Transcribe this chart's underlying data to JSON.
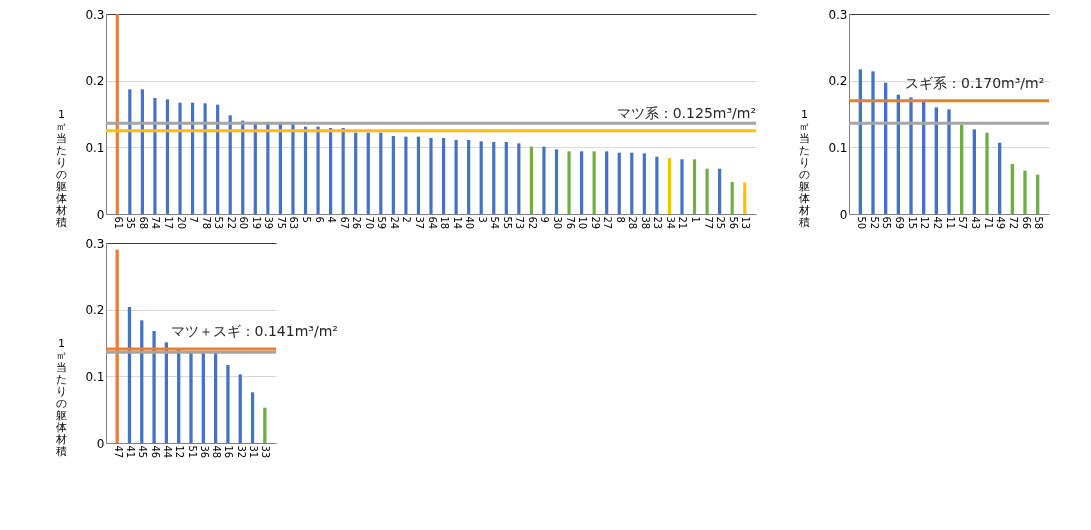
{
  "chart_data": [
    {
      "type": "bar",
      "ylabel": "1㎡当たりの躯体材積",
      "categories": [
        "61",
        "35",
        "68",
        "74",
        "17",
        "20",
        "7",
        "78",
        "53",
        "22",
        "60",
        "19",
        "39",
        "75",
        "63",
        "5",
        "6",
        "4",
        "67",
        "26",
        "70",
        "59",
        "24",
        "2",
        "37",
        "64",
        "18",
        "14",
        "40",
        "3",
        "54",
        "55",
        "73",
        "62",
        "9",
        "30",
        "76",
        "10",
        "29",
        "27",
        "8",
        "28",
        "38",
        "23",
        "34",
        "21",
        "1",
        "77",
        "25",
        "56",
        "13"
      ],
      "values": [
        0.3,
        0.187,
        0.187,
        0.174,
        0.172,
        0.167,
        0.167,
        0.166,
        0.164,
        0.148,
        0.14,
        0.135,
        0.135,
        0.135,
        0.135,
        0.131,
        0.131,
        0.129,
        0.129,
        0.122,
        0.122,
        0.122,
        0.117,
        0.116,
        0.116,
        0.114,
        0.114,
        0.111,
        0.111,
        0.109,
        0.108,
        0.108,
        0.106,
        0.101,
        0.101,
        0.097,
        0.094,
        0.094,
        0.094,
        0.094,
        0.092,
        0.092,
        0.091,
        0.086,
        0.084,
        0.082,
        0.082,
        0.068,
        0.068,
        0.048,
        0.047
      ],
      "colors": [
        "#ed7d31",
        "#4472c4",
        "#4472c4",
        "#4472c4",
        "#4472c4",
        "#4472c4",
        "#4472c4",
        "#4472c4",
        "#4472c4",
        "#4472c4",
        "#4472c4",
        "#4472c4",
        "#4472c4",
        "#4472c4",
        "#4472c4",
        "#4472c4",
        "#4472c4",
        "#4472c4",
        "#4472c4",
        "#4472c4",
        "#4472c4",
        "#4472c4",
        "#4472c4",
        "#4472c4",
        "#4472c4",
        "#4472c4",
        "#4472c4",
        "#4472c4",
        "#4472c4",
        "#4472c4",
        "#4472c4",
        "#4472c4",
        "#4472c4",
        "#70ad47",
        "#4472c4",
        "#4472c4",
        "#70ad47",
        "#4472c4",
        "#70ad47",
        "#4472c4",
        "#4472c4",
        "#4472c4",
        "#4472c4",
        "#4472c4",
        "#ffc000",
        "#4472c4",
        "#70ad47",
        "#70ad47",
        "#4472c4",
        "#70ad47",
        "#ffc000"
      ],
      "ylim": [
        0,
        0.3
      ],
      "yticks": [
        0,
        0.1,
        0.2,
        0.3
      ],
      "grid": "y",
      "ref_lines": [
        {
          "axis": "y",
          "value": 0.136,
          "color": "#a5a5a5"
        },
        {
          "axis": "y",
          "value": 0.125,
          "label": "マツ系：0.125m³/m²",
          "color": "#ffc000"
        }
      ]
    },
    {
      "type": "bar",
      "ylabel": "1㎡当たりの躯体材積",
      "categories": [
        "50",
        "52",
        "65",
        "69",
        "15",
        "12",
        "42",
        "11",
        "57",
        "43",
        "71",
        "49",
        "72",
        "66",
        "58"
      ],
      "values": [
        0.217,
        0.214,
        0.197,
        0.179,
        0.175,
        0.169,
        0.16,
        0.157,
        0.134,
        0.127,
        0.122,
        0.107,
        0.075,
        0.065,
        0.059
      ],
      "colors": [
        "#4472c4",
        "#4472c4",
        "#4472c4",
        "#4472c4",
        "#4472c4",
        "#4472c4",
        "#4472c4",
        "#4472c4",
        "#70ad47",
        "#4472c4",
        "#70ad47",
        "#4472c4",
        "#70ad47",
        "#70ad47",
        "#70ad47"
      ],
      "ylim": [
        0,
        0.3
      ],
      "yticks": [
        0,
        0.1,
        0.2,
        0.3
      ],
      "grid": "y",
      "ref_lines": [
        {
          "axis": "y",
          "value": 0.136,
          "color": "#a5a5a5"
        },
        {
          "axis": "y",
          "value": 0.17,
          "label": "スギ系：0.170m³/m²",
          "color": "#ed7d31"
        }
      ]
    },
    {
      "type": "bar",
      "ylabel": "1㎡当たりの躯体材積",
      "categories": [
        "47",
        "41",
        "45",
        "46",
        "44",
        "12",
        "51",
        "36",
        "48",
        "16",
        "32",
        "31",
        "33"
      ],
      "values": [
        0.29,
        0.204,
        0.184,
        0.168,
        0.151,
        0.14,
        0.135,
        0.135,
        0.135,
        0.117,
        0.103,
        0.076,
        0.053
      ],
      "colors": [
        "#ed7d31",
        "#4472c4",
        "#4472c4",
        "#4472c4",
        "#4472c4",
        "#4472c4",
        "#4472c4",
        "#4472c4",
        "#4472c4",
        "#4472c4",
        "#4472c4",
        "#4472c4",
        "#70ad47"
      ],
      "ylim": [
        0,
        0.3
      ],
      "yticks": [
        0,
        0.1,
        0.2,
        0.3
      ],
      "grid": "y",
      "ref_lines": [
        {
          "axis": "y",
          "value": 0.136,
          "color": "#a5a5a5"
        },
        {
          "axis": "y",
          "value": 0.141,
          "label": "マツ＋スギ：0.141m³/m²",
          "color": "#ed7d31"
        }
      ]
    }
  ]
}
